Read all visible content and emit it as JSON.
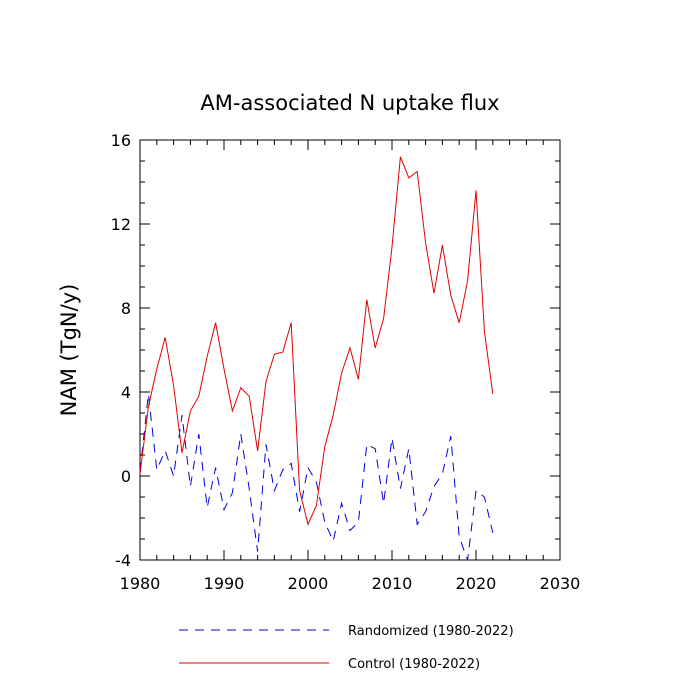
{
  "chart_data": {
    "type": "line",
    "title": "AM-associated N uptake flux",
    "xlabel": "",
    "ylabel": "NAM  (TgN/y)",
    "xlim": [
      1980,
      2030
    ],
    "ylim": [
      -4,
      16
    ],
    "xticks": [
      1980,
      1990,
      2000,
      2010,
      2020,
      2030
    ],
    "yticks": [
      -4,
      0,
      4,
      8,
      12,
      16
    ],
    "x": [
      1980,
      1981,
      1982,
      1983,
      1984,
      1985,
      1986,
      1987,
      1988,
      1989,
      1990,
      1991,
      1992,
      1993,
      1994,
      1995,
      1996,
      1997,
      1998,
      1999,
      2000,
      2001,
      2002,
      2003,
      2004,
      2005,
      2006,
      2007,
      2008,
      2009,
      2010,
      2011,
      2012,
      2013,
      2014,
      2015,
      2016,
      2017,
      2018,
      2019,
      2020,
      2021,
      2022
    ],
    "series": [
      {
        "name": "Control (1980-2022)",
        "color": "#e00000",
        "dash": "solid",
        "values": [
          0.1,
          3.3,
          5.1,
          6.6,
          4.3,
          1.1,
          3.1,
          3.8,
          5.7,
          7.3,
          5.1,
          3.1,
          4.2,
          3.8,
          1.2,
          4.5,
          5.8,
          5.9,
          7.3,
          -0.7,
          -2.3,
          -1.4,
          1.4,
          2.9,
          4.9,
          6.1,
          4.6,
          8.4,
          6.1,
          7.5,
          10.9,
          15.2,
          14.2,
          14.5,
          11.1,
          8.7,
          11.0,
          8.6,
          7.3,
          9.3,
          13.6,
          6.9,
          3.9
        ]
      },
      {
        "name": "Randomized (1980-2022)",
        "color": "#0000e0",
        "dash": "dashed",
        "values": [
          0.2,
          3.9,
          0.3,
          1.2,
          0.0,
          2.9,
          -0.5,
          2.0,
          -1.5,
          0.4,
          -1.6,
          -0.8,
          2.0,
          -0.6,
          -3.6,
          1.5,
          -0.7,
          0.3,
          0.6,
          -1.7,
          0.4,
          -0.3,
          -2.2,
          -3.1,
          -1.3,
          -2.6,
          -2.2,
          1.5,
          1.3,
          -1.3,
          1.8,
          -0.6,
          1.3,
          -2.3,
          -1.7,
          -0.5,
          0.1,
          1.9,
          -2.9,
          -4.0,
          -0.7,
          -1.0,
          -2.7
        ]
      }
    ],
    "legend": {
      "position": "bottom",
      "entries": [
        "Randomized (1980-2022)",
        "Control (1980-2022)"
      ]
    }
  }
}
